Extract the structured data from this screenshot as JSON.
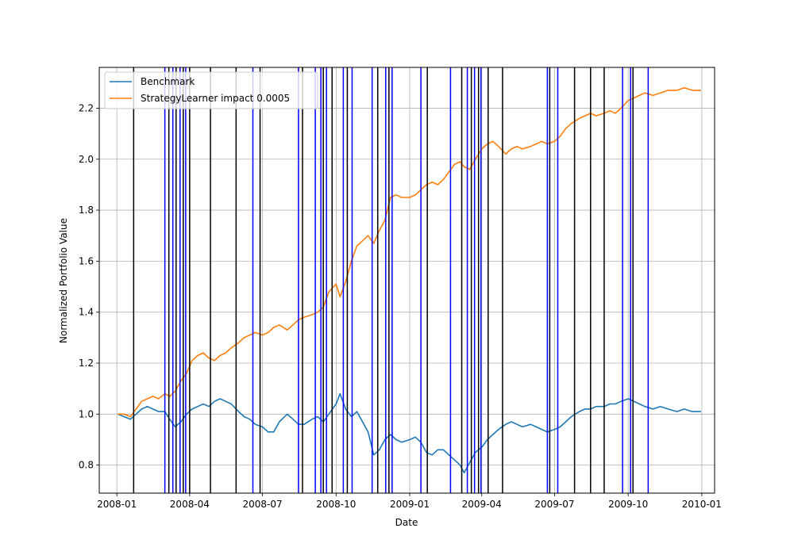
{
  "chart_data": {
    "type": "line",
    "title": "",
    "xlabel": "Date",
    "ylabel": "Normalized Portfolio Value",
    "xlim": [
      "2007-12-10",
      "2010-01-17"
    ],
    "ylim": [
      0.69,
      2.36
    ],
    "grid": true,
    "legend_position": "upper-left",
    "x_ticks": [
      {
        "value": "2008-01-01",
        "label": "2008-01"
      },
      {
        "value": "2008-04-01",
        "label": "2008-04"
      },
      {
        "value": "2008-07-01",
        "label": "2008-07"
      },
      {
        "value": "2008-10-01",
        "label": "2008-10"
      },
      {
        "value": "2009-01-01",
        "label": "2009-01"
      },
      {
        "value": "2009-04-01",
        "label": "2009-04"
      },
      {
        "value": "2009-07-01",
        "label": "2009-07"
      },
      {
        "value": "2009-10-01",
        "label": "2009-10"
      },
      {
        "value": "2010-01-01",
        "label": "2010-01"
      }
    ],
    "y_ticks": [
      {
        "value": 0.8,
        "label": "0.8"
      },
      {
        "value": 1.0,
        "label": "1.0"
      },
      {
        "value": 1.2,
        "label": "1.2"
      },
      {
        "value": 1.4,
        "label": "1.4"
      },
      {
        "value": 1.6,
        "label": "1.6"
      },
      {
        "value": 1.8,
        "label": "1.8"
      },
      {
        "value": 2.0,
        "label": "2.0"
      },
      {
        "value": 2.2,
        "label": "2.2"
      }
    ],
    "series": [
      {
        "name": "Benchmark",
        "color": "#1f77b4",
        "points": [
          [
            "2008-01-02",
            1.0
          ],
          [
            "2008-01-10",
            0.99
          ],
          [
            "2008-01-18",
            0.98
          ],
          [
            "2008-01-25",
            1.0
          ],
          [
            "2008-02-01",
            1.02
          ],
          [
            "2008-02-08",
            1.03
          ],
          [
            "2008-02-15",
            1.02
          ],
          [
            "2008-02-22",
            1.01
          ],
          [
            "2008-03-01",
            1.01
          ],
          [
            "2008-03-07",
            0.98
          ],
          [
            "2008-03-14",
            0.95
          ],
          [
            "2008-03-21",
            0.97
          ],
          [
            "2008-03-28",
            1.0
          ],
          [
            "2008-04-04",
            1.02
          ],
          [
            "2008-04-11",
            1.03
          ],
          [
            "2008-04-18",
            1.04
          ],
          [
            "2008-04-25",
            1.03
          ],
          [
            "2008-05-02",
            1.05
          ],
          [
            "2008-05-09",
            1.06
          ],
          [
            "2008-05-16",
            1.05
          ],
          [
            "2008-05-23",
            1.04
          ],
          [
            "2008-06-01",
            1.01
          ],
          [
            "2008-06-08",
            0.99
          ],
          [
            "2008-06-15",
            0.98
          ],
          [
            "2008-06-22",
            0.96
          ],
          [
            "2008-07-01",
            0.95
          ],
          [
            "2008-07-08",
            0.93
          ],
          [
            "2008-07-15",
            0.93
          ],
          [
            "2008-07-22",
            0.97
          ],
          [
            "2008-08-01",
            1.0
          ],
          [
            "2008-08-08",
            0.98
          ],
          [
            "2008-08-15",
            0.96
          ],
          [
            "2008-08-22",
            0.96
          ],
          [
            "2008-09-01",
            0.98
          ],
          [
            "2008-09-08",
            0.99
          ],
          [
            "2008-09-15",
            0.97
          ],
          [
            "2008-09-22",
            1.0
          ],
          [
            "2008-10-01",
            1.04
          ],
          [
            "2008-10-06",
            1.08
          ],
          [
            "2008-10-13",
            1.02
          ],
          [
            "2008-10-20",
            0.99
          ],
          [
            "2008-10-27",
            1.01
          ],
          [
            "2008-11-03",
            0.97
          ],
          [
            "2008-11-10",
            0.93
          ],
          [
            "2008-11-17",
            0.84
          ],
          [
            "2008-11-24",
            0.86
          ],
          [
            "2008-12-01",
            0.9
          ],
          [
            "2008-12-08",
            0.92
          ],
          [
            "2008-12-15",
            0.9
          ],
          [
            "2008-12-22",
            0.89
          ],
          [
            "2009-01-01",
            0.9
          ],
          [
            "2009-01-08",
            0.91
          ],
          [
            "2009-01-15",
            0.89
          ],
          [
            "2009-01-22",
            0.85
          ],
          [
            "2009-01-29",
            0.84
          ],
          [
            "2009-02-05",
            0.86
          ],
          [
            "2009-02-12",
            0.86
          ],
          [
            "2009-02-19",
            0.84
          ],
          [
            "2009-02-26",
            0.82
          ],
          [
            "2009-03-05",
            0.8
          ],
          [
            "2009-03-10",
            0.77
          ],
          [
            "2009-03-17",
            0.81
          ],
          [
            "2009-03-24",
            0.85
          ],
          [
            "2009-04-01",
            0.87
          ],
          [
            "2009-04-08",
            0.9
          ],
          [
            "2009-04-15",
            0.92
          ],
          [
            "2009-04-22",
            0.94
          ],
          [
            "2009-05-01",
            0.96
          ],
          [
            "2009-05-08",
            0.97
          ],
          [
            "2009-05-15",
            0.96
          ],
          [
            "2009-05-22",
            0.95
          ],
          [
            "2009-06-01",
            0.96
          ],
          [
            "2009-06-08",
            0.95
          ],
          [
            "2009-06-15",
            0.94
          ],
          [
            "2009-06-22",
            0.93
          ],
          [
            "2009-07-01",
            0.94
          ],
          [
            "2009-07-08",
            0.95
          ],
          [
            "2009-07-15",
            0.97
          ],
          [
            "2009-07-22",
            0.99
          ],
          [
            "2009-08-01",
            1.01
          ],
          [
            "2009-08-08",
            1.02
          ],
          [
            "2009-08-15",
            1.02
          ],
          [
            "2009-08-22",
            1.03
          ],
          [
            "2009-09-01",
            1.03
          ],
          [
            "2009-09-08",
            1.04
          ],
          [
            "2009-09-15",
            1.04
          ],
          [
            "2009-09-22",
            1.05
          ],
          [
            "2009-10-01",
            1.06
          ],
          [
            "2009-10-08",
            1.05
          ],
          [
            "2009-10-15",
            1.04
          ],
          [
            "2009-10-22",
            1.03
          ],
          [
            "2009-11-01",
            1.02
          ],
          [
            "2009-11-10",
            1.03
          ],
          [
            "2009-11-20",
            1.02
          ],
          [
            "2009-12-01",
            1.01
          ],
          [
            "2009-12-10",
            1.02
          ],
          [
            "2009-12-20",
            1.01
          ],
          [
            "2009-12-31",
            1.01
          ]
        ]
      },
      {
        "name": "StrategyLearner impact 0.0005",
        "color": "#ff7f0e",
        "points": [
          [
            "2008-01-02",
            1.0
          ],
          [
            "2008-01-10",
            1.0
          ],
          [
            "2008-01-18",
            0.99
          ],
          [
            "2008-01-25",
            1.02
          ],
          [
            "2008-02-01",
            1.05
          ],
          [
            "2008-02-08",
            1.06
          ],
          [
            "2008-02-15",
            1.07
          ],
          [
            "2008-02-22",
            1.06
          ],
          [
            "2008-03-01",
            1.08
          ],
          [
            "2008-03-07",
            1.07
          ],
          [
            "2008-03-14",
            1.09
          ],
          [
            "2008-03-21",
            1.13
          ],
          [
            "2008-03-28",
            1.16
          ],
          [
            "2008-04-04",
            1.21
          ],
          [
            "2008-04-11",
            1.23
          ],
          [
            "2008-04-18",
            1.24
          ],
          [
            "2008-04-25",
            1.22
          ],
          [
            "2008-05-02",
            1.21
          ],
          [
            "2008-05-09",
            1.23
          ],
          [
            "2008-05-16",
            1.24
          ],
          [
            "2008-05-23",
            1.26
          ],
          [
            "2008-06-01",
            1.28
          ],
          [
            "2008-06-08",
            1.3
          ],
          [
            "2008-06-15",
            1.31
          ],
          [
            "2008-06-22",
            1.32
          ],
          [
            "2008-07-01",
            1.31
          ],
          [
            "2008-07-08",
            1.32
          ],
          [
            "2008-07-15",
            1.34
          ],
          [
            "2008-07-22",
            1.35
          ],
          [
            "2008-08-01",
            1.33
          ],
          [
            "2008-08-08",
            1.35
          ],
          [
            "2008-08-15",
            1.37
          ],
          [
            "2008-08-22",
            1.38
          ],
          [
            "2008-09-01",
            1.39
          ],
          [
            "2008-09-08",
            1.4
          ],
          [
            "2008-09-15",
            1.42
          ],
          [
            "2008-09-22",
            1.48
          ],
          [
            "2008-10-01",
            1.51
          ],
          [
            "2008-10-06",
            1.46
          ],
          [
            "2008-10-13",
            1.52
          ],
          [
            "2008-10-20",
            1.6
          ],
          [
            "2008-10-27",
            1.66
          ],
          [
            "2008-11-03",
            1.68
          ],
          [
            "2008-11-10",
            1.7
          ],
          [
            "2008-11-17",
            1.67
          ],
          [
            "2008-11-24",
            1.72
          ],
          [
            "2008-12-01",
            1.76
          ],
          [
            "2008-12-08",
            1.85
          ],
          [
            "2008-12-15",
            1.86
          ],
          [
            "2008-12-22",
            1.85
          ],
          [
            "2009-01-01",
            1.85
          ],
          [
            "2009-01-08",
            1.86
          ],
          [
            "2009-01-15",
            1.88
          ],
          [
            "2009-01-22",
            1.9
          ],
          [
            "2009-01-29",
            1.91
          ],
          [
            "2009-02-05",
            1.9
          ],
          [
            "2009-02-12",
            1.92
          ],
          [
            "2009-02-19",
            1.95
          ],
          [
            "2009-02-26",
            1.98
          ],
          [
            "2009-03-05",
            1.99
          ],
          [
            "2009-03-10",
            1.97
          ],
          [
            "2009-03-17",
            1.96
          ],
          [
            "2009-03-24",
            2.0
          ],
          [
            "2009-04-01",
            2.04
          ],
          [
            "2009-04-08",
            2.06
          ],
          [
            "2009-04-15",
            2.07
          ],
          [
            "2009-04-22",
            2.05
          ],
          [
            "2009-05-01",
            2.02
          ],
          [
            "2009-05-08",
            2.04
          ],
          [
            "2009-05-15",
            2.05
          ],
          [
            "2009-05-22",
            2.04
          ],
          [
            "2009-06-01",
            2.05
          ],
          [
            "2009-06-08",
            2.06
          ],
          [
            "2009-06-15",
            2.07
          ],
          [
            "2009-06-22",
            2.06
          ],
          [
            "2009-07-01",
            2.07
          ],
          [
            "2009-07-08",
            2.09
          ],
          [
            "2009-07-15",
            2.12
          ],
          [
            "2009-07-22",
            2.14
          ],
          [
            "2009-08-01",
            2.16
          ],
          [
            "2009-08-08",
            2.17
          ],
          [
            "2009-08-15",
            2.18
          ],
          [
            "2009-08-22",
            2.17
          ],
          [
            "2009-09-01",
            2.18
          ],
          [
            "2009-09-08",
            2.19
          ],
          [
            "2009-09-15",
            2.18
          ],
          [
            "2009-09-22",
            2.2
          ],
          [
            "2009-10-01",
            2.23
          ],
          [
            "2009-10-08",
            2.24
          ],
          [
            "2009-10-15",
            2.25
          ],
          [
            "2009-10-22",
            2.26
          ],
          [
            "2009-11-01",
            2.25
          ],
          [
            "2009-11-10",
            2.26
          ],
          [
            "2009-11-20",
            2.27
          ],
          [
            "2009-12-01",
            2.27
          ],
          [
            "2009-12-10",
            2.28
          ],
          [
            "2009-12-20",
            2.27
          ],
          [
            "2009-12-31",
            2.27
          ]
        ]
      }
    ],
    "vertical_lines": {
      "blue": {
        "color": "#0000ff",
        "dates": [
          "2008-03-01",
          "2008-03-11",
          "2008-03-20",
          "2008-03-27",
          "2008-06-19",
          "2008-08-15",
          "2008-09-05",
          "2008-09-12",
          "2008-09-19",
          "2008-10-10",
          "2008-10-21",
          "2008-11-15",
          "2008-12-02",
          "2008-12-10",
          "2009-01-15",
          "2009-02-21",
          "2009-03-14",
          "2009-03-23",
          "2009-03-31",
          "2009-06-22",
          "2009-07-05",
          "2009-09-24",
          "2009-10-04",
          "2009-10-26"
        ]
      },
      "black": {
        "color": "#000000",
        "dates": [
          "2008-01-22",
          "2008-03-06",
          "2008-03-15",
          "2008-03-24",
          "2008-04-01",
          "2008-04-27",
          "2008-05-29",
          "2008-06-28",
          "2008-08-20",
          "2008-09-15",
          "2008-09-26",
          "2008-10-15",
          "2008-11-22",
          "2008-12-06",
          "2009-01-23",
          "2009-03-07",
          "2009-03-19",
          "2009-03-28",
          "2009-04-09",
          "2009-04-27",
          "2009-06-25",
          "2009-07-26",
          "2009-08-15",
          "2009-09-01",
          "2009-10-07"
        ]
      }
    }
  }
}
